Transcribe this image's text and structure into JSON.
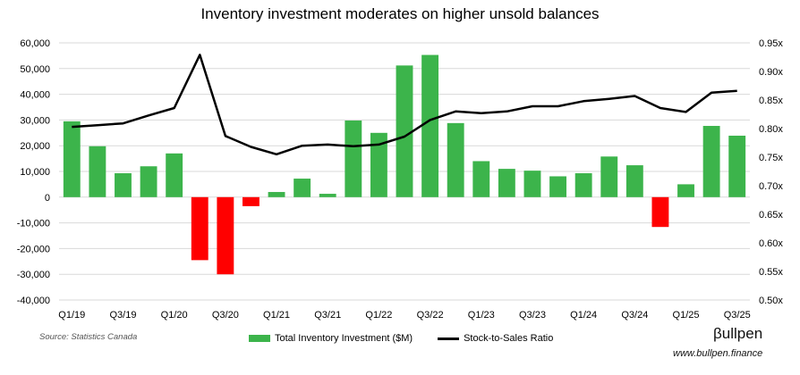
{
  "chart_data": {
    "type": "bar",
    "title": "Inventory investment moderates on higher unsold balances",
    "categories": [
      "Q1/19",
      "Q2/19",
      "Q3/19",
      "Q4/19",
      "Q1/20",
      "Q2/20",
      "Q3/20",
      "Q4/20",
      "Q1/21",
      "Q2/21",
      "Q3/21",
      "Q4/21",
      "Q1/22",
      "Q2/22",
      "Q3/22",
      "Q4/22",
      "Q1/23",
      "Q2/23",
      "Q3/23",
      "Q4/23",
      "Q1/24",
      "Q2/24",
      "Q3/24",
      "Q4/24",
      "Q1/25",
      "Q2/25",
      "Q3/25"
    ],
    "tick_labels": [
      "Q1/19",
      "Q3/19",
      "Q1/20",
      "Q3/20",
      "Q1/21",
      "Q3/21",
      "Q1/22",
      "Q3/22",
      "Q1/23",
      "Q3/23",
      "Q1/24",
      "Q3/24",
      "Q1/25",
      "Q3/25"
    ],
    "series": [
      {
        "name": "Total Inventory Investment ($M)",
        "kind": "bar",
        "axis": "left",
        "values": [
          29500,
          19800,
          9300,
          12000,
          17000,
          -24500,
          -30000,
          -3500,
          2000,
          7200,
          1300,
          29800,
          25000,
          51200,
          55300,
          28800,
          14000,
          11000,
          10300,
          8100,
          9300,
          15800,
          12400,
          -11600,
          5000,
          27700,
          23900
        ]
      },
      {
        "name": "Stock-to-Sales Ratio",
        "kind": "line",
        "axis": "right",
        "values": [
          0.803,
          0.806,
          0.809,
          0.823,
          0.836,
          0.929,
          0.787,
          0.768,
          0.755,
          0.77,
          0.772,
          0.769,
          0.772,
          0.786,
          0.815,
          0.83,
          0.827,
          0.83,
          0.839,
          0.839,
          0.848,
          0.852,
          0.857,
          0.836,
          0.829,
          0.863,
          0.866
        ]
      }
    ],
    "ylim_left": [
      -40000,
      60000
    ],
    "yticks_left": [
      "60,000",
      "50,000",
      "40,000",
      "30,000",
      "20,000",
      "10,000",
      "0",
      "-10,000",
      "-20,000",
      "-30,000",
      "-40,000"
    ],
    "ylim_right": [
      0.5,
      0.95
    ],
    "yticks_right": [
      "0.95x",
      "0.90x",
      "0.85x",
      "0.80x",
      "0.75x",
      "0.70x",
      "0.65x",
      "0.60x",
      "0.55x",
      "0.50x"
    ],
    "xlabel": "",
    "ylabel": "",
    "grid": true,
    "legend_position": "bottom"
  },
  "colors": {
    "positive_bar": "#3cb44b",
    "negative_bar": "#ff0000",
    "line": "#000000",
    "grid": "#d9d9d9"
  },
  "legend": {
    "bar_label": "Total Inventory Investment ($M)",
    "line_label": "Stock-to-Sales Ratio"
  },
  "source": "Source: Statistics Canada",
  "brand": {
    "name": "βullpen",
    "url": "www.bullpen.finance"
  }
}
